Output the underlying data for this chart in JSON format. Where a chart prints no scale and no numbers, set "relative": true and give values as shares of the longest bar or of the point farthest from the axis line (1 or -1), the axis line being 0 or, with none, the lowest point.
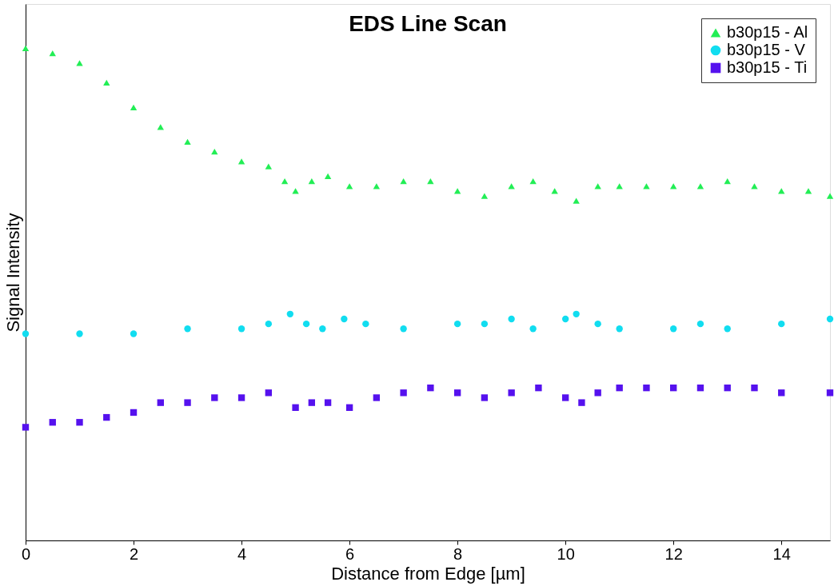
{
  "chart_data": {
    "type": "scatter",
    "title": "EDS Line Scan",
    "xlabel": "Distance from Edge [µm]",
    "ylabel": "Signal Intensity",
    "relative": true,
    "xlim": [
      0,
      14.9
    ],
    "xticks": [
      0,
      2,
      4,
      6,
      8,
      10,
      12,
      14
    ],
    "grid": false,
    "legend": "top right",
    "series": [
      {
        "name": "b30p15 - Al",
        "color": "#22ee55",
        "marker": "triangle",
        "x": [
          0,
          0.5,
          1,
          1.5,
          2,
          2.5,
          3,
          3.5,
          4,
          4.5,
          4.8,
          5,
          5.3,
          5.6,
          6,
          6.5,
          7,
          7.5,
          8,
          8.5,
          9,
          9.4,
          9.8,
          10.2,
          10.6,
          11,
          11.5,
          12,
          12.5,
          13,
          13.5,
          14,
          14.5,
          14.9
        ],
        "values": [
          1.0,
          0.99,
          0.97,
          0.93,
          0.88,
          0.84,
          0.81,
          0.79,
          0.77,
          0.76,
          0.73,
          0.71,
          0.73,
          0.74,
          0.72,
          0.72,
          0.73,
          0.73,
          0.71,
          0.7,
          0.72,
          0.73,
          0.71,
          0.69,
          0.72,
          0.72,
          0.72,
          0.72,
          0.72,
          0.73,
          0.72,
          0.71,
          0.71,
          0.7
        ]
      },
      {
        "name": "b30p15 - V",
        "color": "#11ddf0",
        "marker": "circle",
        "x": [
          0,
          1,
          2,
          3,
          4,
          4.5,
          4.9,
          5.2,
          5.5,
          5.9,
          6.3,
          7,
          8,
          8.5,
          9,
          9.4,
          10,
          10.2,
          10.6,
          11,
          12,
          12.5,
          13,
          14,
          14.9
        ],
        "values": [
          0.42,
          0.42,
          0.42,
          0.43,
          0.43,
          0.44,
          0.46,
          0.44,
          0.43,
          0.45,
          0.44,
          0.43,
          0.44,
          0.44,
          0.45,
          0.43,
          0.45,
          0.46,
          0.44,
          0.43,
          0.43,
          0.44,
          0.43,
          0.44,
          0.45
        ]
      },
      {
        "name": "b30p15 - Ti",
        "color": "#5511ee",
        "marker": "square",
        "x": [
          0,
          0.5,
          1,
          1.5,
          2,
          2.5,
          3,
          3.5,
          4,
          4.5,
          5,
          5.3,
          5.6,
          6,
          6.5,
          7,
          7.5,
          8,
          8.5,
          9,
          9.5,
          10,
          10.3,
          10.6,
          11,
          11.5,
          12,
          12.5,
          13,
          13.5,
          14,
          14.9
        ],
        "values": [
          0.23,
          0.24,
          0.24,
          0.25,
          0.26,
          0.28,
          0.28,
          0.29,
          0.29,
          0.3,
          0.27,
          0.28,
          0.28,
          0.27,
          0.29,
          0.3,
          0.31,
          0.3,
          0.29,
          0.3,
          0.31,
          0.29,
          0.28,
          0.3,
          0.31,
          0.31,
          0.31,
          0.31,
          0.31,
          0.31,
          0.3,
          0.3
        ]
      }
    ]
  }
}
